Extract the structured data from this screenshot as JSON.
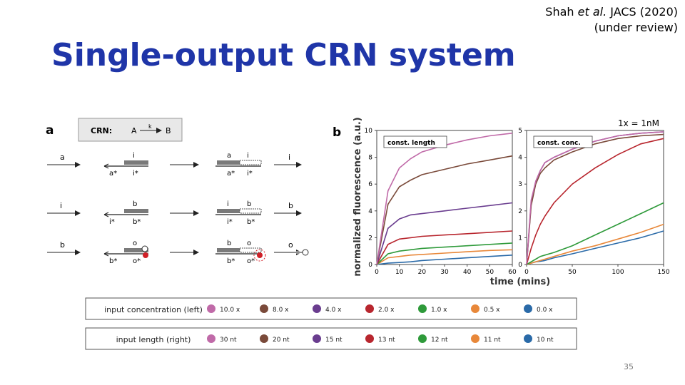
{
  "slide": {
    "title": "Single-output CRN system",
    "citation_author": "Shah",
    "citation_etal": "et al.",
    "citation_venue": "JACS (2020)",
    "citation_status": "(under review)",
    "unit_note": "1x = 1nM",
    "page_number": "35"
  },
  "panel_a": {
    "label": "a",
    "crn_label": "CRN:",
    "crn_reactant": "A",
    "crn_rate": "k",
    "crn_product": "B",
    "rows": [
      {
        "input": "a",
        "gate1_top": "i",
        "gate1_bot_left": "a*",
        "gate1_bot_right": "i*",
        "gate2_top_left": "a",
        "gate2_top_right": "i",
        "gate2_bot_left": "a*",
        "gate2_bot_right": "i*",
        "output": "i"
      },
      {
        "input": "i",
        "gate1_top": "b",
        "gate1_bot_left": "i*",
        "gate1_bot_right": "b*",
        "gate2_top_left": "i",
        "gate2_top_right": "b",
        "gate2_bot_left": "i*",
        "gate2_bot_right": "b*",
        "output": "b"
      },
      {
        "input": "b",
        "gate1_top": "o",
        "gate1_bot_left": "b*",
        "gate1_bot_right": "o*",
        "gate2_top_left": "b",
        "gate2_top_right": "o",
        "gate2_bot_left": "b*",
        "gate2_bot_right": "o*",
        "output": "o"
      }
    ]
  },
  "panel_b": {
    "label": "b",
    "ylabel": "normalized fluorescence (a.u.)",
    "xlabel": "time (mins)"
  },
  "chart_data": [
    {
      "type": "line",
      "title": "const. length",
      "xlim": [
        0,
        60
      ],
      "ylim": [
        0,
        10
      ],
      "xticks": [
        0,
        10,
        20,
        30,
        40,
        50,
        60
      ],
      "yticks": [
        0,
        2,
        4,
        6,
        8,
        10
      ],
      "series": [
        {
          "name": "10.0 x",
          "color": "#c06aa8",
          "x": [
            0,
            5,
            10,
            15,
            20,
            30,
            40,
            50,
            60
          ],
          "y": [
            0,
            5.5,
            7.2,
            7.9,
            8.4,
            8.9,
            9.3,
            9.6,
            9.8
          ]
        },
        {
          "name": "8.0 x",
          "color": "#7a4a3a",
          "x": [
            0,
            5,
            10,
            15,
            20,
            30,
            40,
            50,
            60
          ],
          "y": [
            0,
            4.5,
            5.8,
            6.3,
            6.7,
            7.1,
            7.5,
            7.8,
            8.1
          ]
        },
        {
          "name": "4.0 x",
          "color": "#6a3d8f",
          "x": [
            0,
            5,
            10,
            15,
            20,
            30,
            40,
            50,
            60
          ],
          "y": [
            0,
            2.7,
            3.4,
            3.7,
            3.8,
            4.0,
            4.2,
            4.4,
            4.6
          ]
        },
        {
          "name": "2.0 x",
          "color": "#b8262e",
          "x": [
            0,
            5,
            10,
            15,
            20,
            30,
            40,
            50,
            60
          ],
          "y": [
            0,
            1.5,
            1.9,
            2.0,
            2.1,
            2.2,
            2.3,
            2.4,
            2.5
          ]
        },
        {
          "name": "1.0 x",
          "color": "#2e9a3a",
          "x": [
            0,
            5,
            10,
            15,
            20,
            30,
            40,
            50,
            60
          ],
          "y": [
            0,
            0.8,
            1.0,
            1.1,
            1.2,
            1.3,
            1.4,
            1.5,
            1.6
          ]
        },
        {
          "name": "0.5 x",
          "color": "#e8883a",
          "x": [
            0,
            5,
            10,
            15,
            20,
            30,
            40,
            50,
            60
          ],
          "y": [
            0,
            0.5,
            0.6,
            0.7,
            0.75,
            0.85,
            0.95,
            1.05,
            1.1
          ]
        },
        {
          "name": "0.0 x",
          "color": "#2a6aa8",
          "x": [
            0,
            5,
            10,
            15,
            20,
            30,
            40,
            50,
            60
          ],
          "y": [
            0,
            0.1,
            0.15,
            0.2,
            0.3,
            0.4,
            0.5,
            0.6,
            0.7
          ]
        }
      ],
      "legend_title": "input concentration (left)"
    },
    {
      "type": "line",
      "title": "const. conc.",
      "xlim": [
        0,
        150
      ],
      "ylim": [
        0,
        5
      ],
      "xticks": [
        0,
        50,
        100,
        150
      ],
      "yticks": [
        0,
        1,
        2,
        3,
        4,
        5
      ],
      "series": [
        {
          "name": "30 nt",
          "color": "#c06aa8",
          "x": [
            0,
            5,
            10,
            15,
            20,
            30,
            50,
            75,
            100,
            125,
            150
          ],
          "y": [
            0,
            2.4,
            3.1,
            3.5,
            3.8,
            4.0,
            4.3,
            4.6,
            4.8,
            4.9,
            4.95
          ]
        },
        {
          "name": "20 nt",
          "color": "#7a4a3a",
          "x": [
            0,
            5,
            10,
            15,
            20,
            30,
            50,
            75,
            100,
            125,
            150
          ],
          "y": [
            0,
            2.2,
            3.0,
            3.4,
            3.6,
            3.9,
            4.2,
            4.5,
            4.7,
            4.8,
            4.85
          ]
        },
        {
          "name": "15 nt",
          "color": "#6a3d8f",
          "x": [
            0,
            5,
            10,
            15,
            20,
            30,
            50,
            75,
            100,
            125,
            150
          ],
          "y": [
            0,
            2.3,
            3.1,
            3.5,
            3.8,
            4.0,
            4.3,
            4.6,
            4.8,
            4.9,
            4.95
          ]
        },
        {
          "name": "13 nt",
          "color": "#b8262e",
          "x": [
            0,
            5,
            10,
            15,
            20,
            30,
            50,
            75,
            100,
            125,
            150
          ],
          "y": [
            0,
            0.6,
            1.1,
            1.5,
            1.8,
            2.3,
            3.0,
            3.6,
            4.1,
            4.5,
            4.7
          ]
        },
        {
          "name": "12 nt",
          "color": "#2e9a3a",
          "x": [
            0,
            5,
            10,
            15,
            20,
            30,
            50,
            75,
            100,
            125,
            150
          ],
          "y": [
            0,
            0.1,
            0.2,
            0.3,
            0.35,
            0.45,
            0.7,
            1.1,
            1.5,
            1.9,
            2.3
          ]
        },
        {
          "name": "11 nt",
          "color": "#e8883a",
          "x": [
            0,
            5,
            10,
            15,
            20,
            30,
            50,
            75,
            100,
            125,
            150
          ],
          "y": [
            0,
            0.05,
            0.1,
            0.15,
            0.2,
            0.3,
            0.5,
            0.7,
            0.95,
            1.2,
            1.5
          ]
        },
        {
          "name": "10 nt",
          "color": "#2a6aa8",
          "x": [
            0,
            5,
            10,
            15,
            20,
            30,
            50,
            75,
            100,
            125,
            150
          ],
          "y": [
            0,
            0.05,
            0.1,
            0.12,
            0.15,
            0.25,
            0.4,
            0.6,
            0.8,
            1.0,
            1.25
          ]
        }
      ],
      "legend_title": "input length (right)"
    }
  ]
}
